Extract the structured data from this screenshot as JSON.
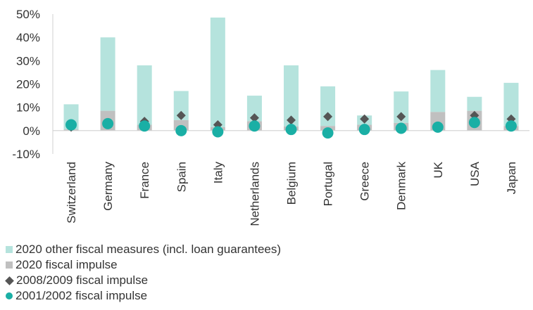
{
  "chart_data": {
    "type": "bar",
    "categories": [
      "Switzerland",
      "Germany",
      "France",
      "Spain",
      "Italy",
      "Netherlands",
      "Belgium",
      "Portugal",
      "Greece",
      "Denmark",
      "UK",
      "USA",
      "Japan"
    ],
    "series": [
      {
        "name": "2020 other fiscal measures (incl. loan guarantees)",
        "kind": "stacked-bar",
        "values": [
          10.8,
          31.5,
          25.5,
          12.5,
          47.0,
          11.0,
          26.2,
          17.0,
          4.0,
          13.5,
          18.0,
          6.0,
          18.5
        ]
      },
      {
        "name": "2020 fiscal impulse",
        "kind": "stacked-bar",
        "values": [
          0.5,
          8.5,
          2.5,
          4.5,
          1.5,
          4.0,
          1.8,
          2.0,
          2.5,
          3.3,
          8.0,
          8.5,
          2.0
        ]
      },
      {
        "name": "2008/2009 fiscal impulse",
        "kind": "marker-diamond",
        "values": [
          1.5,
          3.0,
          4.0,
          6.5,
          2.5,
          5.5,
          4.5,
          6.0,
          5.0,
          6.0,
          1.5,
          6.5,
          5.0
        ]
      },
      {
        "name": "2001/2002 fiscal impulse",
        "kind": "marker-circle",
        "values": [
          2.5,
          3.0,
          2.0,
          0.0,
          -0.5,
          2.0,
          0.5,
          -1.0,
          0.5,
          1.0,
          1.5,
          3.5,
          2.0
        ]
      }
    ],
    "yaxis": {
      "ylim": [
        -10,
        50
      ],
      "ticks": [
        -10,
        0,
        10,
        20,
        30,
        40,
        50
      ],
      "tick_labels": [
        "-10%",
        "0%",
        "10%",
        "20%",
        "30%",
        "40%",
        "50%"
      ]
    },
    "colors": {
      "other": "#b5e3dd",
      "impulse": "#c0c0c0",
      "diamond": "#555555",
      "circle": "#1aafa5",
      "axis": "#d0d0d0",
      "text": "#333333"
    },
    "legend_position": "bottom-left",
    "grid": false
  }
}
